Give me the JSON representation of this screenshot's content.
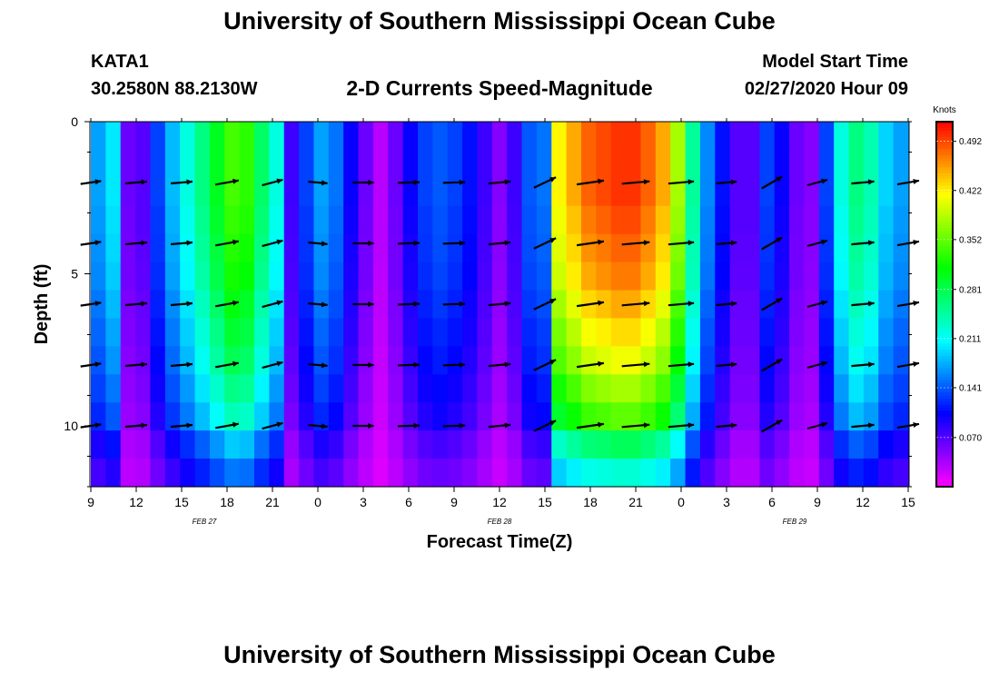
{
  "header": {
    "title": "University of Southern Mississippi Ocean Cube",
    "station": "KATA1",
    "coords": "30.2580N 88.2130W",
    "subtitle": "2-D Currents Speed-Magnitude",
    "start_label": "Model Start Time",
    "start_time": "02/27/2020 Hour 09"
  },
  "footer": {
    "title": "University of Southern Mississippi Ocean Cube"
  },
  "chart_data": {
    "type": "heatmap",
    "xlabel": "Forecast Time(Z)",
    "ylabel": "Depth (ft)",
    "x_tick_labels": [
      "9",
      "12",
      "15",
      "18",
      "21",
      "0",
      "3",
      "6",
      "9",
      "12",
      "15",
      "18",
      "21",
      "0",
      "3",
      "6",
      "9",
      "12",
      "15"
    ],
    "x_range_hours": [
      0,
      54
    ],
    "y_ticks": [
      0,
      5,
      10
    ],
    "y_range": [
      0,
      12
    ],
    "y_inverted": true,
    "date_labels": [
      {
        "text": "FEB 27",
        "hour": 7.5
      },
      {
        "text": "FEB 28",
        "hour": 27
      },
      {
        "text": "FEB 29",
        "hour": 46.5
      }
    ],
    "colorbar": {
      "unit": "Knots",
      "tick_values": [
        0.492,
        0.422,
        0.352,
        0.281,
        0.211,
        0.141,
        0.07
      ],
      "tick_labels": [
        "0.492",
        "0.422",
        "0.352",
        "0.281",
        "0.211",
        "0.141",
        "0.070"
      ],
      "range": [
        0.0,
        0.52
      ]
    },
    "speed_by_hour": [
      0.17,
      0.2,
      0.06,
      0.07,
      0.13,
      0.18,
      0.22,
      0.26,
      0.3,
      0.34,
      0.33,
      0.27,
      0.22,
      0.08,
      0.13,
      0.17,
      0.15,
      0.1,
      0.06,
      0.03,
      0.06,
      0.1,
      0.13,
      0.14,
      0.13,
      0.11,
      0.08,
      0.05,
      0.08,
      0.14,
      0.15,
      0.42,
      0.45,
      0.48,
      0.49,
      0.5,
      0.5,
      0.48,
      0.45,
      0.38,
      0.25,
      0.16,
      0.11,
      0.07,
      0.07,
      0.13,
      0.1,
      0.06,
      0.05,
      0.13,
      0.22,
      0.26,
      0.24,
      0.19,
      0.17
    ],
    "depth_factor": [
      1.0,
      1.0,
      1.0,
      0.98,
      0.96,
      0.94,
      0.9,
      0.86,
      0.82,
      0.76,
      0.7,
      0.55,
      0.45
    ],
    "vector_hours": [
      0,
      3,
      6,
      9,
      12,
      15,
      18,
      21,
      24,
      27,
      30,
      33,
      36,
      39,
      42,
      45,
      48,
      51,
      54
    ],
    "vector_depths": [
      2,
      4,
      6,
      8,
      10
    ],
    "vector_angles_deg": [
      -8,
      -5,
      -5,
      -10,
      -15,
      5,
      0,
      -2,
      -2,
      -5,
      -25,
      -8,
      -5,
      -5,
      -5,
      -30,
      -15,
      -5,
      -10
    ],
    "vector_lengths": [
      0.12,
      0.15,
      0.15,
      0.2,
      0.14,
      0.08,
      0.13,
      0.15,
      0.16,
      0.16,
      0.22,
      0.3,
      0.32,
      0.26,
      0.12,
      0.2,
      0.12,
      0.18,
      0.16
    ]
  }
}
